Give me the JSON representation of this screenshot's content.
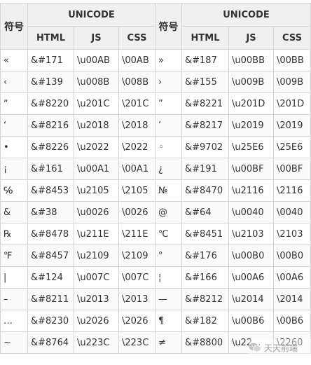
{
  "header": {
    "symbol": "符号",
    "unicode": "UNICODE",
    "html": "HTML",
    "js": "JS",
    "css": "CSS"
  },
  "rows": [
    {
      "l": {
        "ch": "«",
        "html": "&#171",
        "js": "\\u00AB",
        "css": "\\00AB"
      },
      "r": {
        "ch": "»",
        "html": "&#187",
        "js": "\\u00BB",
        "css": "\\00BB"
      }
    },
    {
      "l": {
        "ch": "‹",
        "html": "&#139",
        "js": "\\u008B",
        "css": "\\008B"
      },
      "r": {
        "ch": "›",
        "html": "&#155",
        "js": "\\u009B",
        "css": "\\009B"
      }
    },
    {
      "l": {
        "ch": "“",
        "html": "&#8220",
        "js": "\\u201C",
        "css": "\\201C"
      },
      "r": {
        "ch": "”",
        "html": "&#8221",
        "js": "\\u201D",
        "css": "\\201D"
      }
    },
    {
      "l": {
        "ch": "‘",
        "html": "&#8216",
        "js": "\\u2018",
        "css": "\\2018"
      },
      "r": {
        "ch": "’",
        "html": "&#8217",
        "js": "\\u2019",
        "css": "\\2019"
      }
    },
    {
      "l": {
        "ch": "•",
        "html": "&#8226",
        "js": "\\u2022",
        "css": "\\2022"
      },
      "r": {
        "ch": "◦",
        "html": "&#9702",
        "js": "\\u25E6",
        "css": "\\25E6"
      }
    },
    {
      "l": {
        "ch": "¡",
        "html": "&#161",
        "js": "\\u00A1",
        "css": "\\00A1"
      },
      "r": {
        "ch": "¿",
        "html": "&#191",
        "js": "\\u00BF",
        "css": "\\00BF"
      }
    },
    {
      "l": {
        "ch": "℅",
        "html": "&#8453",
        "js": "\\u2105",
        "css": "\\2105"
      },
      "r": {
        "ch": "№",
        "html": "&#8470",
        "js": "\\u2116",
        "css": "\\2116"
      }
    },
    {
      "l": {
        "ch": "&",
        "html": "&#38",
        "js": "\\u0026",
        "css": "\\0026"
      },
      "r": {
        "ch": "@",
        "html": "&#64",
        "js": "\\u0040",
        "css": "\\0040"
      }
    },
    {
      "l": {
        "ch": "℞",
        "html": "&#8478",
        "js": "\\u211E",
        "css": "\\211E"
      },
      "r": {
        "ch": "℃",
        "html": "&#8451",
        "js": "\\u2103",
        "css": "\\2103"
      }
    },
    {
      "l": {
        "ch": "℉",
        "html": "&#8457",
        "js": "\\u2109",
        "css": "\\2109"
      },
      "r": {
        "ch": "°",
        "html": "&#176",
        "js": "\\u00B0",
        "css": "\\00B0"
      }
    },
    {
      "l": {
        "ch": "|",
        "html": "&#124",
        "js": "\\u007C",
        "css": "\\007C"
      },
      "r": {
        "ch": "¦",
        "html": "&#166",
        "js": "\\u00A6",
        "css": "\\00A6"
      }
    },
    {
      "l": {
        "ch": "–",
        "html": "&#8211",
        "js": "\\u2013",
        "css": "\\2013"
      },
      "r": {
        "ch": "—",
        "html": "&#8212",
        "js": "\\u2014",
        "css": "\\2014"
      }
    },
    {
      "l": {
        "ch": "…",
        "html": "&#8230",
        "js": "\\u2026",
        "css": "\\2026"
      },
      "r": {
        "ch": "¶",
        "html": "&#182",
        "js": "\\u00B6",
        "css": "\\00B6"
      }
    },
    {
      "l": {
        "ch": "∼",
        "html": "&#8764",
        "js": "\\u223C",
        "css": "\\223C"
      },
      "r": {
        "ch": "≠",
        "html": "&#8800",
        "js": "\\u22...",
        "css": "\\2260"
      }
    }
  ],
  "watermark": {
    "text": "天天前端",
    "icon": "wechat-icon"
  }
}
